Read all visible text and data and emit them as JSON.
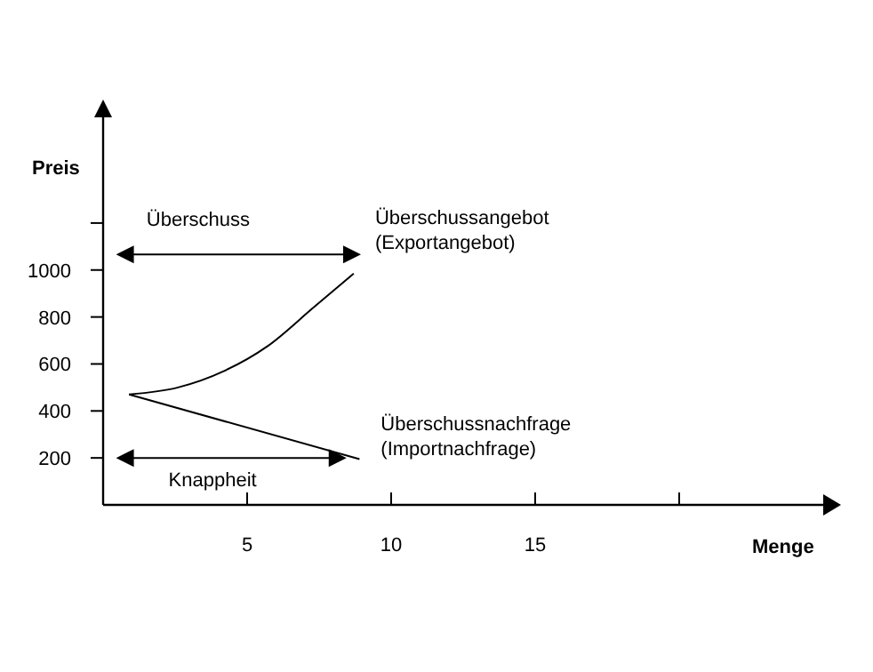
{
  "chart_data": {
    "type": "line",
    "xlabel": "Menge",
    "ylabel": "Preis",
    "xlim": [
      0,
      25
    ],
    "xticks": [
      5,
      10,
      15,
      {
        "value": 20,
        "label": null
      }
    ],
    "ylim": [
      0,
      1650
    ],
    "yticks": [
      200,
      400,
      600,
      800,
      1000,
      {
        "value": 1200,
        "label": null
      }
    ],
    "grid": false,
    "marker": "none",
    "line_style": "solid",
    "series": [
      {
        "name": "Überschussangebot (Exportangebot)",
        "color": "#000000",
        "x": [
          0.9,
          2.6,
          4.2,
          5.7,
          7.3,
          8.7
        ],
        "values": [
          470,
          500,
          570,
          675,
          840,
          985
        ]
      },
      {
        "name": "Überschussnachfrage (Importnachfrage)",
        "color": "#000000",
        "x": [
          0.9,
          8.9
        ],
        "values": [
          470,
          195
        ]
      }
    ],
    "annotations": [
      "Überschuss",
      "Knappheit"
    ]
  }
}
